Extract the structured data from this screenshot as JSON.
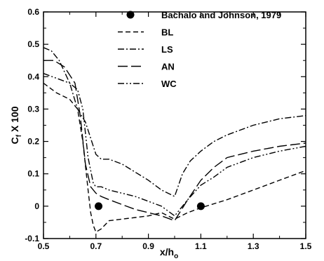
{
  "chart_data": {
    "type": "line",
    "xlabel": "x/h",
    "xlabel_sub": "o",
    "ylabel": "C",
    "ylabel_sub": "f",
    "ylabel_suffix": " X 100",
    "xlim": [
      0.5,
      1.5
    ],
    "ylim": [
      -0.1,
      0.6
    ],
    "xticks": [
      0.5,
      0.7,
      0.9,
      1.1,
      1.3,
      1.5
    ],
    "xtick_labels": [
      "0.5",
      "0.7",
      "0.9",
      "1.1",
      "1.3",
      "1.5"
    ],
    "yticks": [
      -0.1,
      0,
      0.1,
      0.2,
      0.3,
      0.4,
      0.5,
      0.6
    ],
    "ytick_labels": [
      "-0.1",
      "0",
      "0.1",
      "0.2",
      "0.3",
      "0.4",
      "0.5",
      "0.6"
    ],
    "grid": false,
    "legend_position": "top-right",
    "series": [
      {
        "name": "Bachalo and Johnson, 1979",
        "style": "marker",
        "x": [
          0.71,
          1.1
        ],
        "y": [
          0.0,
          0.0
        ]
      },
      {
        "name": "BL",
        "style": "dashed",
        "x": [
          0.5,
          0.55,
          0.6,
          0.63,
          0.65,
          0.67,
          0.68,
          0.69,
          0.7,
          0.72,
          0.75,
          0.8,
          0.85,
          0.9,
          0.95,
          1.0,
          1.05,
          1.1,
          1.2,
          1.3,
          1.4,
          1.5
        ],
        "y": [
          0.38,
          0.35,
          0.33,
          0.3,
          0.2,
          0.05,
          -0.02,
          -0.06,
          -0.08,
          -0.07,
          -0.045,
          -0.04,
          -0.035,
          -0.03,
          -0.02,
          -0.04,
          -0.02,
          -0.005,
          0.02,
          0.05,
          0.08,
          0.11
        ]
      },
      {
        "name": "LS",
        "style": "dash-dot",
        "x": [
          0.5,
          0.53,
          0.56,
          0.6,
          0.63,
          0.66,
          0.68,
          0.7,
          0.72,
          0.75,
          0.8,
          0.85,
          0.9,
          0.95,
          1.0,
          1.03,
          1.06,
          1.1,
          1.15,
          1.2,
          1.3,
          1.4,
          1.5
        ],
        "y": [
          0.49,
          0.48,
          0.45,
          0.38,
          0.3,
          0.26,
          0.21,
          0.16,
          0.145,
          0.145,
          0.13,
          0.105,
          0.08,
          0.05,
          0.03,
          0.1,
          0.14,
          0.17,
          0.2,
          0.22,
          0.25,
          0.27,
          0.28
        ]
      },
      {
        "name": "AN",
        "style": "long-dash",
        "x": [
          0.5,
          0.54,
          0.58,
          0.62,
          0.64,
          0.66,
          0.68,
          0.7,
          0.72,
          0.75,
          0.8,
          0.85,
          0.9,
          0.95,
          1.0,
          1.05,
          1.1,
          1.15,
          1.2,
          1.3,
          1.4,
          1.5
        ],
        "y": [
          0.45,
          0.45,
          0.43,
          0.38,
          0.28,
          0.13,
          0.06,
          0.04,
          0.03,
          0.02,
          0.005,
          -0.01,
          -0.02,
          -0.03,
          -0.045,
          0.02,
          0.08,
          0.12,
          0.15,
          0.17,
          0.185,
          0.195
        ]
      },
      {
        "name": "WC",
        "style": "dash-dot-dot",
        "x": [
          0.5,
          0.55,
          0.6,
          0.63,
          0.65,
          0.67,
          0.69,
          0.7,
          0.72,
          0.75,
          0.8,
          0.85,
          0.9,
          0.95,
          1.0,
          1.05,
          1.1,
          1.15,
          1.2,
          1.3,
          1.4,
          1.5
        ],
        "y": [
          0.41,
          0.395,
          0.38,
          0.36,
          0.3,
          0.15,
          0.07,
          0.06,
          0.06,
          0.05,
          0.04,
          0.03,
          0.015,
          0.0,
          -0.03,
          0.02,
          0.065,
          0.09,
          0.12,
          0.15,
          0.17,
          0.185
        ]
      }
    ]
  }
}
